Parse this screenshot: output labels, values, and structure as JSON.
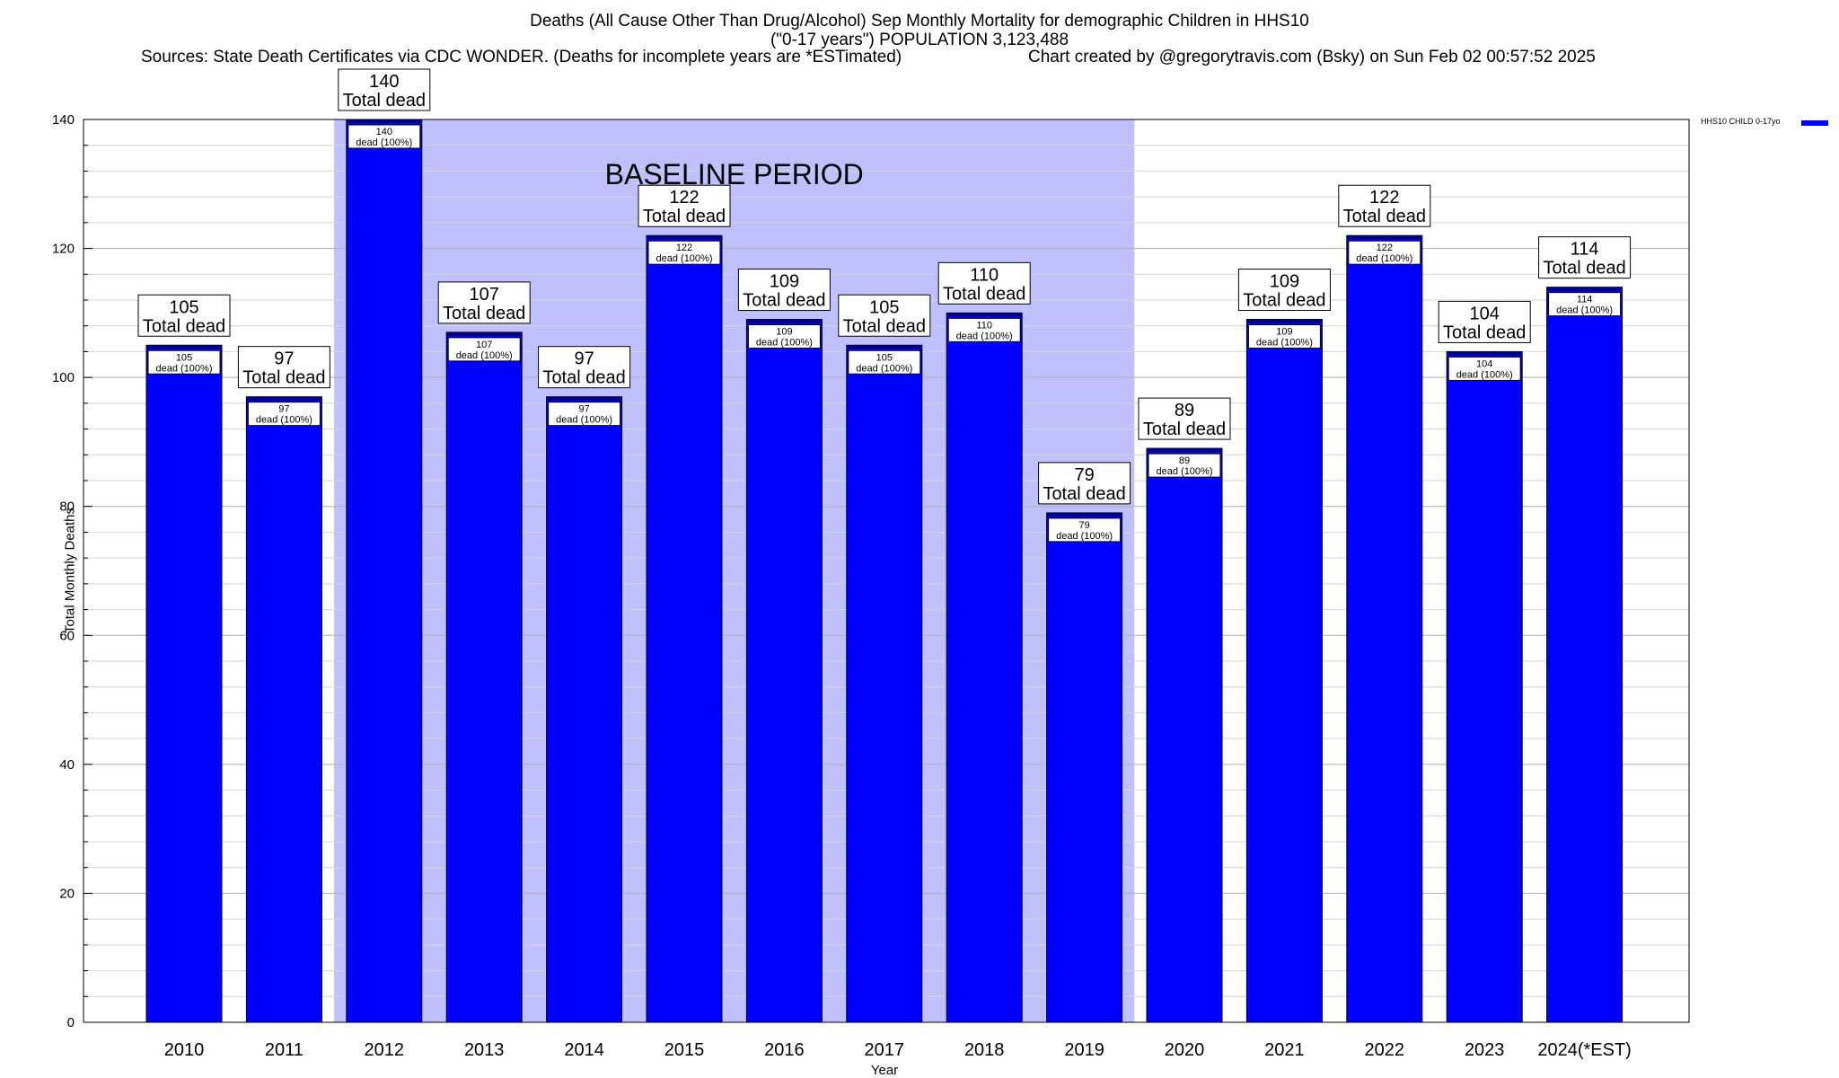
{
  "header": {
    "title_line1": "Deaths (All Cause Other Than Drug/Alcohol) Sep Monthly Mortality for demographic Children in HHS10",
    "title_line2": "(\"0-17 years\") POPULATION 3,123,488",
    "sources": "Sources: State Death Certificates via CDC WONDER. (Deaths for incomplete years are *ESTimated)",
    "credit": "Chart created by @gregorytravis.com (Bsky) on Sun Feb 02 00:57:52 2025"
  },
  "chart_data": {
    "type": "bar",
    "categories": [
      "2010",
      "2011",
      "2012",
      "2013",
      "2014",
      "2015",
      "2016",
      "2017",
      "2018",
      "2019",
      "2020",
      "2021",
      "2022",
      "2023",
      "2024(*EST)"
    ],
    "series": [
      {
        "name": "HHS10 CHILD 0-17yo",
        "values": [
          105,
          97,
          140,
          107,
          97,
          122,
          109,
          105,
          110,
          79,
          89,
          109,
          122,
          104,
          114
        ]
      }
    ],
    "top_label_suffix": "Total dead",
    "inner_label_suffix": "dead (100%)",
    "xlabel": "Year",
    "ylabel": "Total Monthly Deaths",
    "ylim": [
      0,
      140
    ],
    "yticks": [
      0,
      20,
      40,
      60,
      80,
      100,
      120,
      140
    ],
    "baseline": {
      "label": "BASELINE PERIOD",
      "start": "2012",
      "end": "2019"
    },
    "legend_placement": "top-right",
    "grid": true,
    "colors": {
      "bar": "#0000ff",
      "bar_cap": "#000080",
      "baseline_fill": "#c0c0ff",
      "grid": "#c8c8c8"
    }
  }
}
